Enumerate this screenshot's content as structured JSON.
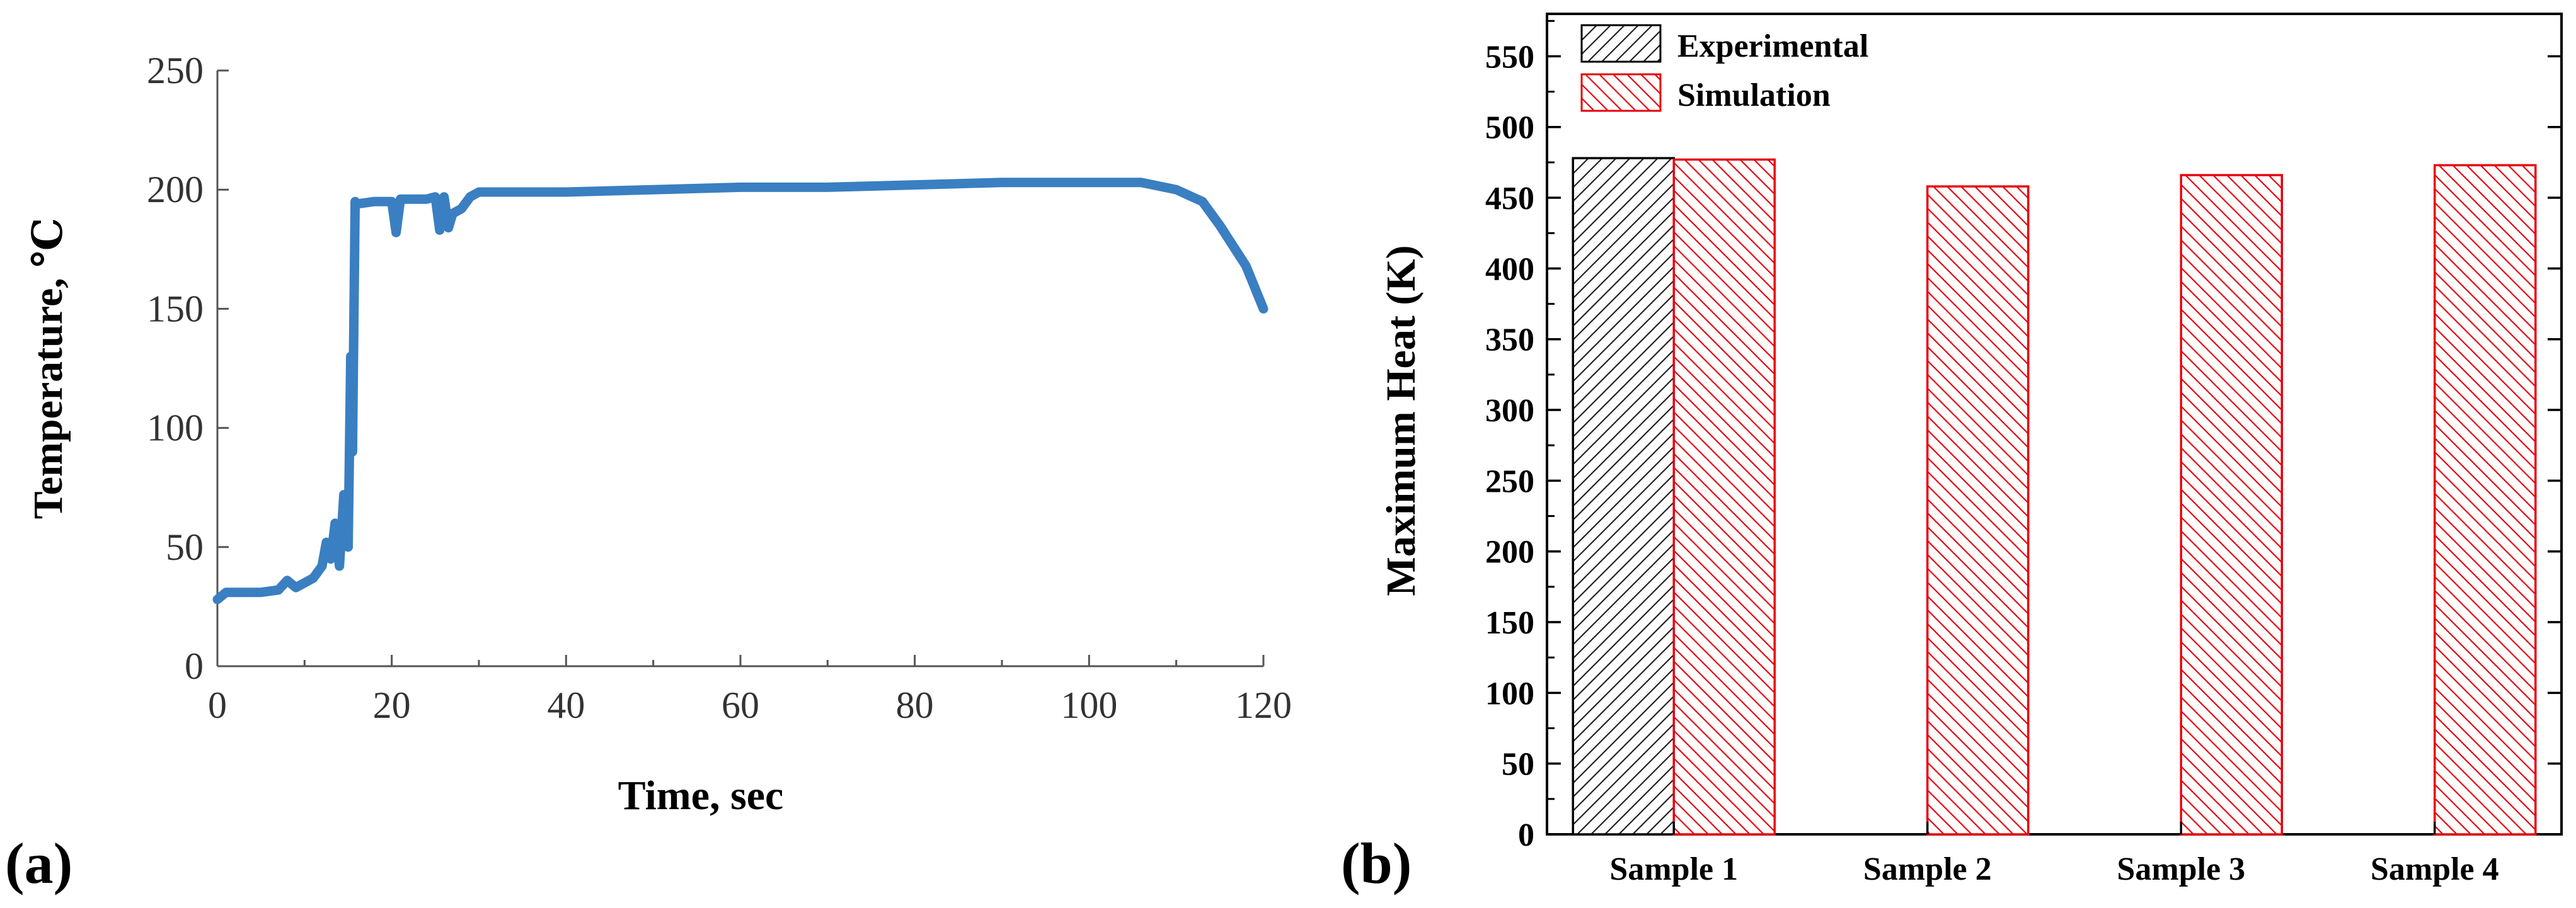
{
  "chart_data": [
    {
      "panel_label": "(a)",
      "type": "line",
      "xlabel": "Time, sec",
      "ylabel": "Temperature, ℃",
      "xlim": [
        0,
        120
      ],
      "ylim": [
        0,
        250
      ],
      "xticks": [
        0,
        20,
        40,
        60,
        80,
        100,
        120
      ],
      "yticks": [
        0,
        50,
        100,
        150,
        200,
        250
      ],
      "color": "#3a7fc1",
      "series": [
        {
          "name": "Temperature",
          "x": [
            0,
            1,
            3,
            5,
            7,
            8,
            9,
            10,
            11,
            12,
            12.5,
            13,
            13.5,
            14,
            14.5,
            15,
            15.3,
            15.5,
            15.8,
            16,
            18,
            20,
            20.5,
            21,
            22,
            24,
            25,
            25.5,
            26,
            26.5,
            27,
            28,
            29,
            30,
            35,
            40,
            50,
            60,
            70,
            80,
            90,
            100,
            106,
            110,
            113,
            115,
            118,
            120
          ],
          "y": [
            28,
            31,
            31,
            31,
            32,
            36,
            33,
            35,
            37,
            42,
            52,
            45,
            60,
            42,
            72,
            50,
            130,
            90,
            195,
            194,
            195,
            195,
            182,
            196,
            196,
            196,
            197,
            183,
            197,
            184,
            190,
            192,
            197,
            199,
            199,
            199,
            200,
            201,
            201,
            202,
            203,
            203,
            203,
            200,
            195,
            185,
            168,
            150
          ]
        }
      ]
    },
    {
      "panel_label": "(b)",
      "type": "bar",
      "ylabel": "Maximum Heat (K)",
      "ylim": [
        0,
        580
      ],
      "yticks": [
        0,
        50,
        100,
        150,
        200,
        250,
        300,
        350,
        400,
        450,
        500,
        550
      ],
      "categories": [
        "Sample 1",
        "Sample 2",
        "Sample 3",
        "Sample 4"
      ],
      "legend_position": "top-left",
      "series": [
        {
          "name": "Experimental",
          "color": "#000000",
          "values": [
            478,
            null,
            null,
            null
          ]
        },
        {
          "name": "Simulation",
          "color": "#e8000b",
          "values": [
            477,
            458,
            466,
            473
          ]
        }
      ]
    }
  ]
}
